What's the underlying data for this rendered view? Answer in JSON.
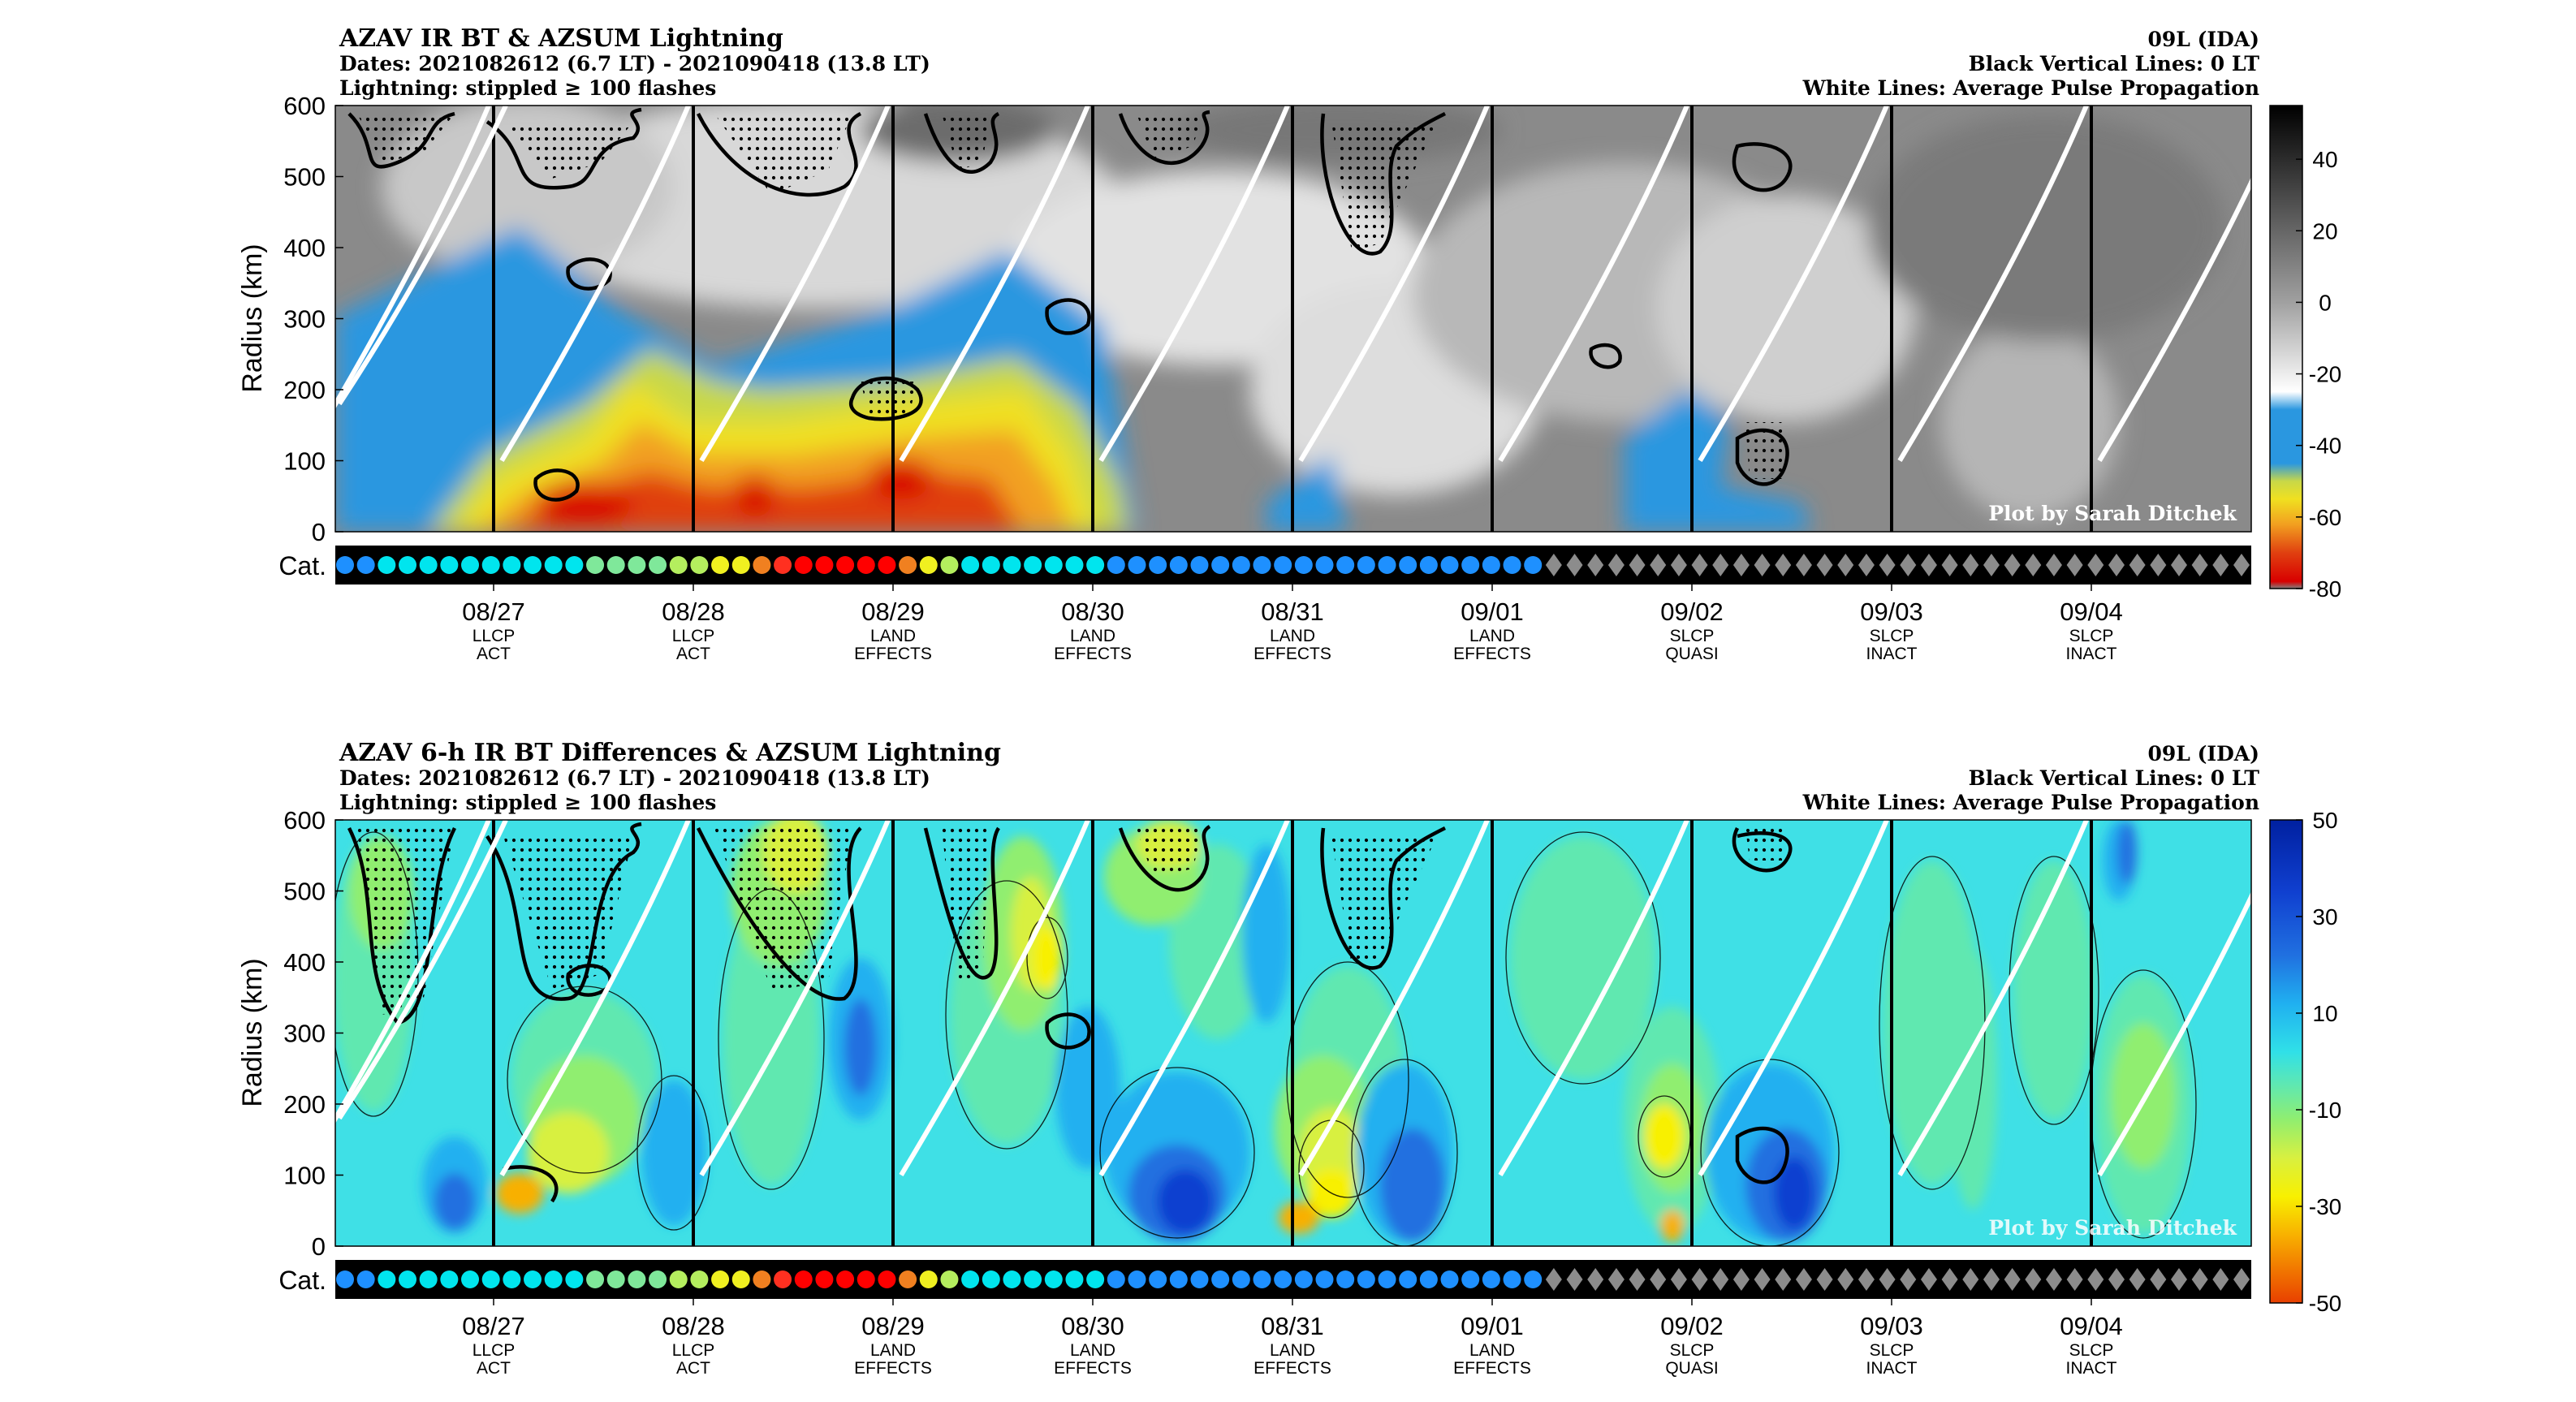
{
  "colors": {
    "panel_top_bg": "#8a8a8a",
    "panel_bottom_bg": "#3fe0e6",
    "category_strip": "#000000",
    "pulse_lines": "#ffffff",
    "day_lines": "#000000"
  },
  "chart_data": [
    {
      "type": "heatmap",
      "title": "AZAV IR BT & AZSUM Lightning",
      "subtitle_dates": "Dates: 2021082612 (6.7 LT) - 2021090418 (13.8 LT)",
      "subtitle_lightning": "Lightning: stippled ≥ 100 flashes",
      "storm": "09L (IDA)",
      "note_vertical": "Black Vertical Lines: 0 LT",
      "note_white": "White Lines: Average Pulse Propagation",
      "ylabel": "Radius (km)",
      "ylim": [
        0,
        600
      ],
      "yticks": [
        0,
        100,
        200,
        300,
        400,
        500,
        600
      ],
      "colorbar": {
        "range": [
          -80,
          55
        ],
        "ticks": [
          40,
          20,
          0,
          -20,
          -40,
          -60,
          -80
        ],
        "stops": [
          {
            "v": 55,
            "c": "#000000"
          },
          {
            "v": 0,
            "c": "#a0a0a0"
          },
          {
            "v": -25,
            "c": "#ffffff"
          },
          {
            "v": -30,
            "c": "#2a97e0"
          },
          {
            "v": -45,
            "c": "#2a97e0"
          },
          {
            "v": -50,
            "c": "#c8d848"
          },
          {
            "v": -55,
            "c": "#f0e020"
          },
          {
            "v": -62,
            "c": "#f2a020"
          },
          {
            "v": -70,
            "c": "#e04010"
          },
          {
            "v": -78,
            "c": "#d80000"
          },
          {
            "v": -80,
            "c": "#808080"
          }
        ]
      },
      "credit": "Plot by Sarah Ditchek",
      "category_label": "Cat."
    },
    {
      "type": "heatmap",
      "title": "AZAV 6-h IR BT Differences & AZSUM Lightning",
      "subtitle_dates": "Dates: 2021082612 (6.7 LT) - 2021090418 (13.8 LT)",
      "subtitle_lightning": "Lightning: stippled ≥ 100 flashes",
      "storm": "09L (IDA)",
      "note_vertical": "Black Vertical Lines: 0 LT",
      "note_white": "White Lines: Average Pulse Propagation",
      "ylabel": "Radius (km)",
      "ylim": [
        0,
        600
      ],
      "yticks": [
        0,
        100,
        200,
        300,
        400,
        500,
        600
      ],
      "colorbar": {
        "range": [
          -50,
          50
        ],
        "ticks": [
          50,
          30,
          10,
          -10,
          -30,
          -50
        ],
        "stops": [
          {
            "v": 50,
            "c": "#0020a0"
          },
          {
            "v": 35,
            "c": "#1040d0"
          },
          {
            "v": 22,
            "c": "#2070e0"
          },
          {
            "v": 12,
            "c": "#20b0f0"
          },
          {
            "v": 2,
            "c": "#30e0e8"
          },
          {
            "v": -5,
            "c": "#60e8b0"
          },
          {
            "v": -12,
            "c": "#90ee70"
          },
          {
            "v": -20,
            "c": "#d8f040"
          },
          {
            "v": -28,
            "c": "#f8f000"
          },
          {
            "v": -36,
            "c": "#f8b000"
          },
          {
            "v": -44,
            "c": "#f07000"
          },
          {
            "v": -50,
            "c": "#e84000"
          }
        ]
      },
      "credit": "Plot by Sarah Ditchek",
      "category_label": "Cat."
    }
  ],
  "days": [
    {
      "date": "08/27",
      "l1": "LLCP",
      "l2": "ACT"
    },
    {
      "date": "08/28",
      "l1": "LLCP",
      "l2": "ACT"
    },
    {
      "date": "08/29",
      "l1": "LAND",
      "l2": "EFFECTS"
    },
    {
      "date": "08/30",
      "l1": "LAND",
      "l2": "EFFECTS"
    },
    {
      "date": "08/31",
      "l1": "LAND",
      "l2": "EFFECTS"
    },
    {
      "date": "09/01",
      "l1": "LAND",
      "l2": "EFFECTS"
    },
    {
      "date": "09/02",
      "l1": "SLCP",
      "l2": "QUASI"
    },
    {
      "date": "09/03",
      "l1": "SLCP",
      "l2": "INACT"
    },
    {
      "date": "09/04",
      "l1": "SLCP",
      "l2": "INACT"
    }
  ],
  "category_markers": {
    "circle_colors": [
      "#1e90ff",
      "#1e90ff",
      "#00e5ee",
      "#00e5ee",
      "#00e5ee",
      "#00e5ee",
      "#00e5ee",
      "#00e5ee",
      "#00e5ee",
      "#00e5ee",
      "#00e5ee",
      "#00e5ee",
      "#7fe89a",
      "#7fe89a",
      "#7fe89a",
      "#7fe89a",
      "#b4ee5e",
      "#b4ee5e",
      "#f0f020",
      "#f0f020",
      "#f08020",
      "#ff3020",
      "#ff0000",
      "#ff0000",
      "#ff0000",
      "#ff0000",
      "#ff0000",
      "#f08020",
      "#f0f020",
      "#b4ee5e",
      "#00e5ee",
      "#00e5ee",
      "#00e5ee",
      "#00e5ee",
      "#00e5ee",
      "#00e5ee",
      "#00e5ee",
      "#1e90ff",
      "#1e90ff",
      "#1e90ff",
      "#1e90ff",
      "#1e90ff",
      "#1e90ff",
      "#1e90ff",
      "#1e90ff",
      "#1e90ff",
      "#1e90ff",
      "#1e90ff",
      "#1e90ff",
      "#1e90ff",
      "#1e90ff",
      "#1e90ff",
      "#1e90ff",
      "#1e90ff",
      "#1e90ff",
      "#1e90ff",
      "#1e90ff",
      "#1e90ff"
    ],
    "diamond_color": "#8c8c8c",
    "diamond_count": 34
  }
}
